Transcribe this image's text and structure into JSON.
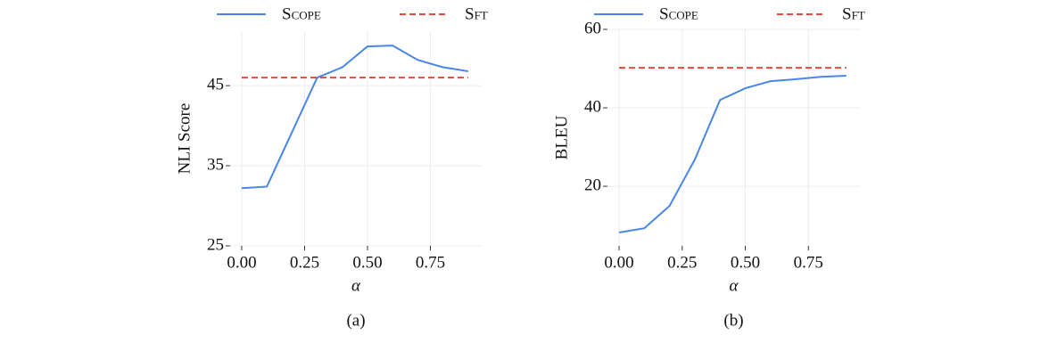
{
  "chart_data": [
    {
      "type": "line",
      "caption": "(a)",
      "xlabel": "α",
      "ylabel": "NLI Score",
      "x": [
        0,
        0.1,
        0.2,
        0.3,
        0.4,
        0.5,
        0.6,
        0.7,
        0.8,
        0.9
      ],
      "xlim": [
        -0.046,
        0.954
      ],
      "ylim": [
        25,
        51.8
      ],
      "xticks": [
        {
          "value": 0,
          "label": "0.00"
        },
        {
          "value": 0.25,
          "label": "0.25"
        },
        {
          "value": 0.5,
          "label": "0.50"
        },
        {
          "value": 0.75,
          "label": "0.75"
        }
      ],
      "yticks": [
        25,
        35,
        45
      ],
      "grid": true,
      "series": [
        {
          "name": "Scope",
          "color": "#4a86e8",
          "dash": false,
          "values": [
            32.2,
            32.4,
            39.2,
            46.0,
            47.3,
            49.9,
            50.0,
            48.2,
            47.3,
            46.8
          ]
        },
        {
          "name": "Sft",
          "color": "#e8483a",
          "dash": true,
          "values": [
            46.0,
            46.0,
            46.0,
            46.0,
            46.0,
            46.0,
            46.0,
            46.0,
            46.0,
            46.0
          ]
        }
      ]
    },
    {
      "type": "line",
      "caption": "(b)",
      "xlabel": "α",
      "ylabel": "BLEU",
      "x": [
        0,
        0.1,
        0.2,
        0.3,
        0.4,
        0.5,
        0.6,
        0.7,
        0.8,
        0.9
      ],
      "xlim": [
        -0.046,
        0.954
      ],
      "ylim": [
        4.8,
        60
      ],
      "xticks": [
        {
          "value": 0,
          "label": "0.00"
        },
        {
          "value": 0.25,
          "label": "0.25"
        },
        {
          "value": 0.5,
          "label": "0.50"
        },
        {
          "value": 0.75,
          "label": "0.75"
        }
      ],
      "yticks": [
        20,
        40,
        60
      ],
      "grid": true,
      "series": [
        {
          "name": "Scope",
          "color": "#4a86e8",
          "dash": false,
          "values": [
            8.2,
            9.3,
            15.0,
            26.8,
            42.0,
            45.0,
            46.8,
            47.3,
            47.9,
            48.2
          ]
        },
        {
          "name": "Sft",
          "color": "#e8483a",
          "dash": true,
          "values": [
            50.2,
            50.2,
            50.2,
            50.2,
            50.2,
            50.2,
            50.2,
            50.2,
            50.2,
            50.2
          ]
        }
      ]
    }
  ]
}
